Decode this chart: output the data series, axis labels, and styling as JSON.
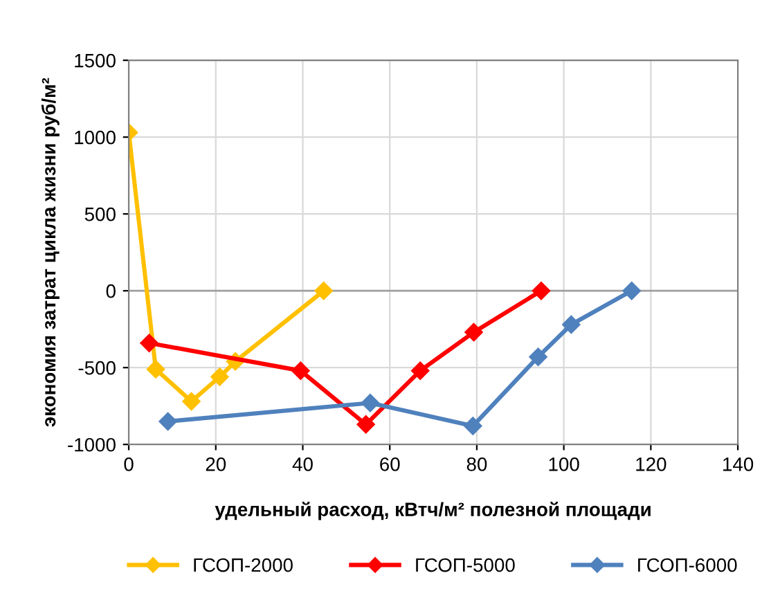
{
  "chart_data": {
    "type": "line",
    "xlabel": "удельный расход, кВтч/м² полезной площади",
    "ylabel": "экономия затрат цикла жизни руб/м²",
    "xlim": [
      0,
      140
    ],
    "xticks": [
      0,
      20,
      40,
      60,
      80,
      100,
      120,
      140
    ],
    "ylim": [
      -1000,
      1500
    ],
    "yticks": [
      -1000,
      -500,
      0,
      500,
      1000,
      1500
    ],
    "grid": true,
    "legend": "bottom",
    "marker": "diamond",
    "line_style": "solid",
    "series": [
      {
        "name": "ГСОП-2000",
        "color": "#ffc000",
        "x": [
          0,
          6.2,
          14.4,
          20.9,
          24.5,
          44.8
        ],
        "values": [
          1030,
          -510,
          -720,
          -560,
          -460,
          0
        ]
      },
      {
        "name": "ГСОП-5000",
        "color": "#ff0000",
        "x": [
          4.7,
          39.5,
          54.5,
          67,
          79.3,
          94.8
        ],
        "values": [
          -340,
          -520,
          -870,
          -520,
          -270,
          0
        ]
      },
      {
        "name": "ГСОП-6000",
        "color": "#4f81bd",
        "x": [
          9,
          55.5,
          79.1,
          94.1,
          101.7,
          115.6
        ],
        "values": [
          -850,
          -730,
          -880,
          -430,
          -220,
          0
        ]
      }
    ]
  }
}
